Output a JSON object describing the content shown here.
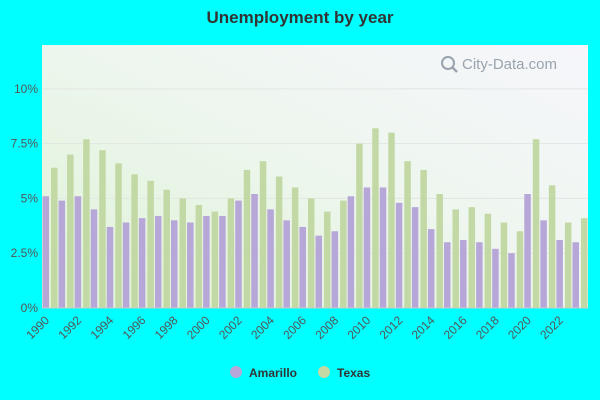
{
  "chart_data": {
    "type": "bar",
    "title": "Unemployment by year",
    "xlabel": "",
    "ylabel": "",
    "ylim": [
      0,
      12
    ],
    "y_ticks": [
      0,
      2.5,
      5,
      7.5,
      10
    ],
    "y_tick_labels": [
      "0%",
      "2.5%",
      "5%",
      "7.5%",
      "10%"
    ],
    "x_tick_labels": [
      "1990",
      "1992",
      "1994",
      "1996",
      "1998",
      "2000",
      "2002",
      "2004",
      "2006",
      "2008",
      "2010",
      "2012",
      "2014",
      "2016",
      "2018",
      "2020",
      "2022"
    ],
    "grid": true,
    "legend_position": "bottom-center",
    "categories": [
      "1990",
      "1991",
      "1992",
      "1993",
      "1994",
      "1995",
      "1996",
      "1997",
      "1998",
      "1999",
      "2000",
      "2001",
      "2002",
      "2003",
      "2004",
      "2005",
      "2006",
      "2007",
      "2008",
      "2009",
      "2010",
      "2011",
      "2012",
      "2013",
      "2014",
      "2015",
      "2016",
      "2017",
      "2018",
      "2019",
      "2020",
      "2021",
      "2022",
      "2023"
    ],
    "series": [
      {
        "name": "Amarillo",
        "color": "#b7a6d8",
        "values": [
          5.1,
          4.9,
          5.1,
          4.5,
          3.7,
          3.9,
          4.1,
          4.2,
          4.0,
          3.9,
          4.2,
          4.2,
          4.9,
          5.2,
          4.5,
          4.0,
          3.7,
          3.3,
          3.5,
          5.1,
          5.5,
          5.5,
          4.8,
          4.6,
          3.6,
          3.0,
          3.1,
          3.0,
          2.7,
          2.5,
          5.2,
          4.0,
          3.1,
          3.0
        ]
      },
      {
        "name": "Texas",
        "color": "#c3d9a5",
        "values": [
          6.4,
          7.0,
          7.7,
          7.2,
          6.6,
          6.1,
          5.8,
          5.4,
          5.0,
          4.7,
          4.4,
          5.0,
          6.3,
          6.7,
          6.0,
          5.5,
          5.0,
          4.4,
          4.9,
          7.5,
          8.2,
          8.0,
          6.7,
          6.3,
          5.2,
          4.5,
          4.6,
          4.3,
          3.9,
          3.5,
          7.7,
          5.6,
          3.9,
          4.1
        ]
      }
    ]
  },
  "watermark": {
    "text": "City-Data.com",
    "icon": "magnifier-icon"
  }
}
